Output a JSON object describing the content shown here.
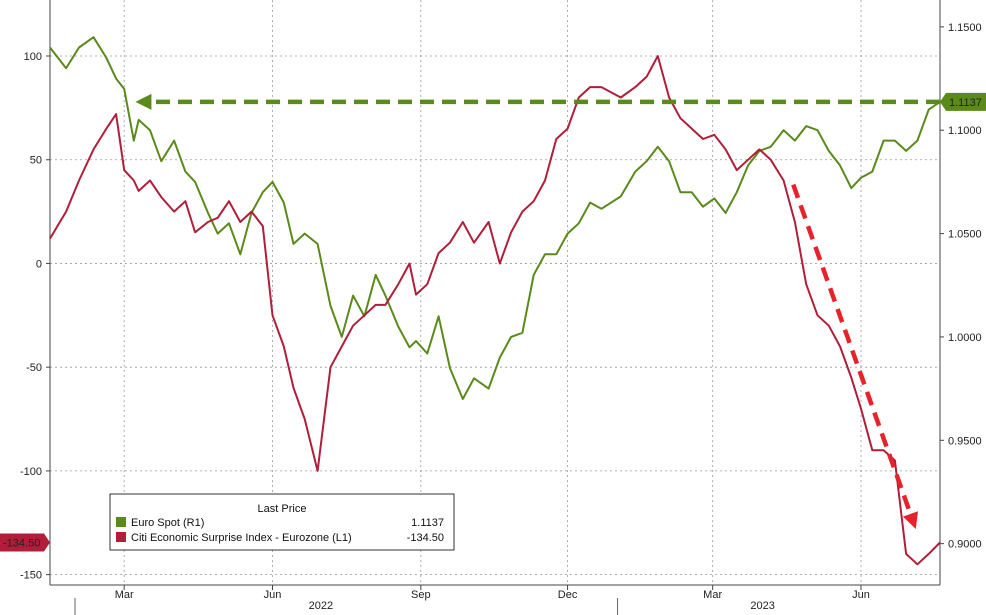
{
  "chart_data": {
    "type": "line",
    "title": "",
    "x_axis": {
      "range": [
        "2022-01-14",
        "2023-07-20"
      ],
      "month_labels": [
        {
          "label": "Mar",
          "date": "2022-03-01"
        },
        {
          "label": "Jun",
          "date": "2022-06-01"
        },
        {
          "label": "Sep",
          "date": "2022-09-01"
        },
        {
          "label": "Dec",
          "date": "2022-12-01"
        },
        {
          "label": "Mar",
          "date": "2023-03-01"
        },
        {
          "label": "Jun",
          "date": "2023-06-01"
        }
      ],
      "year_labels": [
        {
          "label": "2022",
          "date": "2022-07-01"
        },
        {
          "label": "2023",
          "date": "2023-04-01"
        }
      ],
      "year_dividers": [
        "2023-01-01"
      ]
    },
    "y_left": {
      "range": [
        -155,
        127
      ],
      "ticks": [
        -150,
        -100,
        -50,
        0,
        50,
        100
      ],
      "tick_labels": [
        "-150",
        "-100",
        "-50",
        "0",
        "50",
        "100"
      ]
    },
    "y_right": {
      "range": [
        0.88,
        1.163
      ],
      "ticks": [
        0.9,
        0.95,
        1.0,
        1.05,
        1.1,
        1.15
      ],
      "tick_labels": [
        "0.9000",
        "0.9500",
        "1.0000",
        "1.0500",
        "1.1000",
        "1.1500"
      ]
    },
    "grid": true,
    "legend": {
      "position": "bottom-left",
      "header": "Last Price",
      "entries": [
        {
          "label": "Euro Spot (R1)",
          "value": "1.1137",
          "color": "#5a8a1a"
        },
        {
          "label": "Citi Economic Surprise Index - Eurozone (L1)",
          "value": "-134.50",
          "color": "#b01e3a"
        }
      ]
    },
    "last_value_tags": {
      "right": {
        "text": "1.1137",
        "value": 1.1137,
        "color": "#5a8a1a"
      },
      "left": {
        "text": "-134.50",
        "value": -134.5,
        "color": "#b01e3a"
      }
    },
    "annotations": [
      {
        "type": "dashed-arrow-horizontal",
        "color": "#5a8a1a",
        "from": [
          "2023-07-20",
          1.1137
        ],
        "to": [
          "2022-03-08",
          1.1137
        ]
      },
      {
        "type": "dashed-arrow-diagonal",
        "color": "#e8222a",
        "from": [
          "2023-04-20",
          38
        ],
        "to": [
          "2023-07-05",
          -128
        ]
      }
    ],
    "series": [
      {
        "name": "Euro Spot (R1)",
        "axis": "right",
        "color": "#5a8a1a",
        "x": [
          "2022-01-14",
          "2022-01-24",
          "2022-02-01",
          "2022-02-10",
          "2022-02-18",
          "2022-02-24",
          "2022-03-01",
          "2022-03-07",
          "2022-03-10",
          "2022-03-17",
          "2022-03-24",
          "2022-04-01",
          "2022-04-08",
          "2022-04-14",
          "2022-04-22",
          "2022-04-28",
          "2022-05-05",
          "2022-05-12",
          "2022-05-19",
          "2022-05-26",
          "2022-06-01",
          "2022-06-08",
          "2022-06-14",
          "2022-06-21",
          "2022-06-29",
          "2022-07-07",
          "2022-07-14",
          "2022-07-21",
          "2022-07-28",
          "2022-08-04",
          "2022-08-10",
          "2022-08-18",
          "2022-08-25",
          "2022-08-29",
          "2022-09-05",
          "2022-09-12",
          "2022-09-19",
          "2022-09-27",
          "2022-10-04",
          "2022-10-13",
          "2022-10-20",
          "2022-10-27",
          "2022-11-03",
          "2022-11-10",
          "2022-11-17",
          "2022-11-24",
          "2022-12-01",
          "2022-12-08",
          "2022-12-15",
          "2022-12-22",
          "2023-01-03",
          "2023-01-12",
          "2023-01-19",
          "2023-01-26",
          "2023-02-02",
          "2023-02-09",
          "2023-02-16",
          "2023-02-23",
          "2023-03-02",
          "2023-03-09",
          "2023-03-16",
          "2023-03-23",
          "2023-03-30",
          "2023-04-06",
          "2023-04-14",
          "2023-04-21",
          "2023-04-28",
          "2023-05-05",
          "2023-05-12",
          "2023-05-19",
          "2023-05-26",
          "2023-06-01",
          "2023-06-08",
          "2023-06-15",
          "2023-06-22",
          "2023-06-29",
          "2023-07-06",
          "2023-07-13",
          "2023-07-20"
        ],
        "values": [
          1.14,
          1.13,
          1.14,
          1.145,
          1.135,
          1.125,
          1.12,
          1.095,
          1.105,
          1.1,
          1.085,
          1.095,
          1.08,
          1.075,
          1.06,
          1.05,
          1.055,
          1.04,
          1.06,
          1.07,
          1.075,
          1.065,
          1.045,
          1.05,
          1.045,
          1.015,
          1.0,
          1.02,
          1.01,
          1.03,
          1.02,
          1.005,
          0.995,
          0.998,
          0.992,
          1.01,
          0.985,
          0.97,
          0.98,
          0.975,
          0.99,
          1.0,
          1.002,
          1.03,
          1.04,
          1.04,
          1.05,
          1.055,
          1.065,
          1.062,
          1.068,
          1.08,
          1.085,
          1.092,
          1.085,
          1.07,
          1.07,
          1.063,
          1.067,
          1.06,
          1.07,
          1.083,
          1.09,
          1.092,
          1.1,
          1.095,
          1.102,
          1.1,
          1.09,
          1.083,
          1.072,
          1.077,
          1.08,
          1.095,
          1.095,
          1.09,
          1.095,
          1.11,
          1.1137
        ]
      },
      {
        "name": "Citi Economic Surprise Index - Eurozone (L1)",
        "axis": "left",
        "color": "#b01e3a",
        "x": [
          "2022-01-14",
          "2022-01-24",
          "2022-02-01",
          "2022-02-10",
          "2022-02-18",
          "2022-02-24",
          "2022-03-01",
          "2022-03-07",
          "2022-03-10",
          "2022-03-17",
          "2022-03-24",
          "2022-04-01",
          "2022-04-08",
          "2022-04-14",
          "2022-04-22",
          "2022-04-28",
          "2022-05-05",
          "2022-05-12",
          "2022-05-19",
          "2022-05-26",
          "2022-06-01",
          "2022-06-08",
          "2022-06-14",
          "2022-06-21",
          "2022-06-29",
          "2022-07-07",
          "2022-07-14",
          "2022-07-21",
          "2022-07-28",
          "2022-08-04",
          "2022-08-10",
          "2022-08-18",
          "2022-08-25",
          "2022-08-29",
          "2022-09-05",
          "2022-09-12",
          "2022-09-19",
          "2022-09-27",
          "2022-10-04",
          "2022-10-13",
          "2022-10-20",
          "2022-10-27",
          "2022-11-03",
          "2022-11-10",
          "2022-11-17",
          "2022-11-24",
          "2022-12-01",
          "2022-12-08",
          "2022-12-15",
          "2022-12-22",
          "2023-01-03",
          "2023-01-12",
          "2023-01-19",
          "2023-01-26",
          "2023-02-02",
          "2023-02-09",
          "2023-02-16",
          "2023-02-23",
          "2023-03-02",
          "2023-03-09",
          "2023-03-16",
          "2023-03-23",
          "2023-03-30",
          "2023-04-06",
          "2023-04-14",
          "2023-04-21",
          "2023-04-28",
          "2023-05-05",
          "2023-05-12",
          "2023-05-19",
          "2023-05-26",
          "2023-06-01",
          "2023-06-08",
          "2023-06-15",
          "2023-06-22",
          "2023-06-29",
          "2023-07-06",
          "2023-07-13",
          "2023-07-20"
        ],
        "values": [
          12,
          25,
          40,
          55,
          65,
          72,
          45,
          40,
          35,
          40,
          32,
          25,
          30,
          15,
          20,
          22,
          30,
          20,
          25,
          18,
          -25,
          -40,
          -60,
          -75,
          -100,
          -50,
          -40,
          -30,
          -25,
          -20,
          -20,
          -10,
          0,
          -15,
          -10,
          5,
          10,
          20,
          10,
          20,
          0,
          15,
          25,
          30,
          40,
          60,
          65,
          80,
          85,
          85,
          80,
          85,
          90,
          100,
          80,
          70,
          65,
          60,
          62,
          55,
          45,
          50,
          55,
          50,
          40,
          20,
          -10,
          -25,
          -30,
          -40,
          -55,
          -70,
          -90,
          -90,
          -95,
          -140,
          -145,
          -140,
          -134.5
        ]
      }
    ]
  }
}
